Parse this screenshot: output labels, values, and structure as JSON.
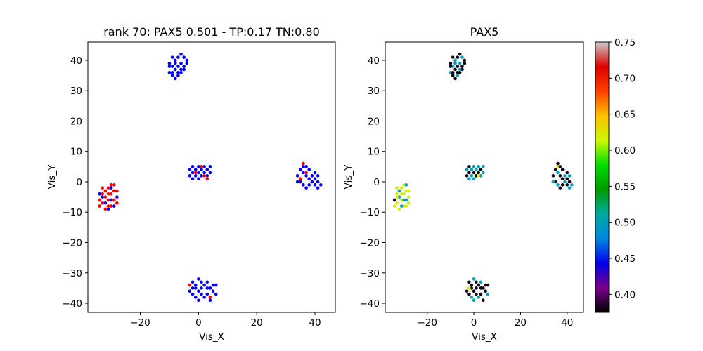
{
  "chart_data": [
    {
      "type": "scatter",
      "title": "rank 70: PAX5 0.501 - TP:0.17 TN:0.80",
      "xlabel": "Vis_X",
      "ylabel": "Vis_Y",
      "xlim": [
        -38,
        47
      ],
      "ylim": [
        -43,
        46
      ],
      "xticks": [
        -20,
        0,
        20,
        40
      ],
      "yticks": [
        -40,
        -30,
        -20,
        -10,
        0,
        10,
        20,
        30,
        40
      ],
      "grid": false,
      "series": [
        {
          "color": "#0000ff",
          "points": [
            [
              -9,
              41
            ],
            [
              -8,
              40
            ],
            [
              -7,
              41
            ],
            [
              -6,
              42
            ],
            [
              -5,
              41
            ],
            [
              -4,
              40
            ],
            [
              -10,
              39
            ],
            [
              -9,
              38
            ],
            [
              -8,
              37
            ],
            [
              -7,
              38
            ],
            [
              -6,
              39
            ],
            [
              -5,
              38
            ],
            [
              -4,
              39
            ],
            [
              -10,
              36
            ],
            [
              -9,
              35
            ],
            [
              -8,
              34
            ],
            [
              -7,
              35
            ],
            [
              -6,
              36
            ],
            [
              -5,
              37
            ],
            [
              -10,
              38
            ],
            [
              -8,
              39
            ],
            [
              -7,
              36
            ],
            [
              -6,
              37
            ],
            [
              -9,
              36
            ],
            [
              -3,
              4
            ],
            [
              -2,
              3
            ],
            [
              -1,
              2
            ],
            [
              0,
              3
            ],
            [
              1,
              4
            ],
            [
              2,
              5
            ],
            [
              3,
              4
            ],
            [
              4,
              3
            ],
            [
              -3,
              2
            ],
            [
              -2,
              1
            ],
            [
              0,
              1
            ],
            [
              1,
              2
            ],
            [
              3,
              2
            ],
            [
              -1,
              4
            ],
            [
              2,
              3
            ],
            [
              0,
              5
            ],
            [
              -2,
              5
            ],
            [
              4,
              5
            ],
            [
              35,
              4
            ],
            [
              36,
              3
            ],
            [
              37,
              2
            ],
            [
              38,
              1
            ],
            [
              39,
              0
            ],
            [
              40,
              -1
            ],
            [
              41,
              0
            ],
            [
              42,
              -1
            ],
            [
              34,
              2
            ],
            [
              35,
              0
            ],
            [
              36,
              -1
            ],
            [
              37,
              -2
            ],
            [
              38,
              -1
            ],
            [
              39,
              2
            ],
            [
              40,
              1
            ],
            [
              41,
              2
            ],
            [
              36,
              5
            ],
            [
              38,
              4
            ],
            [
              40,
              3
            ],
            [
              34,
              0
            ],
            [
              37,
              5
            ],
            [
              41,
              -2
            ],
            [
              -33,
              -5
            ],
            [
              -32,
              -7
            ],
            [
              -30,
              -2
            ],
            [
              -29,
              -8
            ],
            [
              -34,
              -4
            ],
            [
              -31,
              -9
            ],
            [
              -28,
              -5
            ],
            [
              -30,
              -6
            ],
            [
              -2,
              -33
            ],
            [
              -1,
              -34
            ],
            [
              0,
              -32
            ],
            [
              1,
              -33
            ],
            [
              2,
              -34
            ],
            [
              3,
              -33
            ],
            [
              4,
              -35
            ],
            [
              5,
              -36
            ],
            [
              6,
              -37
            ],
            [
              -3,
              -36
            ],
            [
              -2,
              -37
            ],
            [
              -1,
              -38
            ],
            [
              0,
              -36
            ],
            [
              1,
              -37
            ],
            [
              2,
              -38
            ],
            [
              3,
              -37
            ],
            [
              4,
              -39
            ],
            [
              5,
              -34
            ],
            [
              -1,
              -35
            ],
            [
              0,
              -39
            ],
            [
              6,
              -34
            ],
            [
              -2,
              -35
            ],
            [
              1,
              -35
            ],
            [
              3,
              -35
            ]
          ]
        },
        {
          "color": "#ff0000",
          "points": [
            [
              -33,
              -2
            ],
            [
              -32,
              -3
            ],
            [
              -31,
              -2
            ],
            [
              -30,
              -4
            ],
            [
              -29,
              -3
            ],
            [
              -34,
              -6
            ],
            [
              -33,
              -7
            ],
            [
              -32,
              -5
            ],
            [
              -31,
              -6
            ],
            [
              -30,
              -8
            ],
            [
              -29,
              -6
            ],
            [
              -28,
              -7
            ],
            [
              -32,
              -9
            ],
            [
              -31,
              -8
            ],
            [
              -30,
              -1
            ],
            [
              -28,
              -3
            ],
            [
              -34,
              -8
            ],
            [
              -33,
              -4
            ],
            [
              -29,
              -1
            ],
            [
              -31,
              -4
            ],
            [
              3,
              1
            ],
            [
              2,
              2
            ],
            [
              -1,
              3
            ],
            [
              1,
              5
            ],
            [
              36,
              6
            ],
            [
              37,
              3
            ],
            [
              35,
              1
            ],
            [
              -3,
              -34
            ],
            [
              4,
              -38
            ]
          ]
        }
      ]
    },
    {
      "type": "scatter",
      "title": "PAX5",
      "xlabel": "Vis_X",
      "ylabel": "Vis_Y",
      "xlim": [
        -38,
        47
      ],
      "ylim": [
        -43,
        46
      ],
      "xticks": [
        -20,
        0,
        20,
        40
      ],
      "yticks": [
        -40,
        -30,
        -20,
        -10,
        0,
        10,
        20,
        30,
        40
      ],
      "grid": false,
      "colorbar": {
        "range": [
          0.375,
          0.75
        ],
        "ticks": [
          0.4,
          0.45,
          0.5,
          0.55,
          0.6,
          0.65,
          0.7,
          0.75
        ],
        "tick_labels": [
          "0.40",
          "0.45",
          "0.50",
          "0.55",
          "0.60",
          "0.65",
          "0.70",
          "0.75"
        ],
        "colormap": "nipy_spectral",
        "stops": [
          "#000000",
          "#7a0089",
          "#0000ea",
          "#0088dd",
          "#00aaa0",
          "#009b00",
          "#00dd00",
          "#ccf800",
          "#ffc000",
          "#ff4000",
          "#dd0000",
          "#cccccc"
        ]
      },
      "points": [
        [
          -9,
          41,
          0.38
        ],
        [
          -8,
          40,
          0.5
        ],
        [
          -7,
          41,
          0.38
        ],
        [
          -6,
          42,
          0.38
        ],
        [
          -5,
          41,
          0.5
        ],
        [
          -4,
          40,
          0.38
        ],
        [
          -10,
          39,
          0.38
        ],
        [
          -9,
          38,
          0.5
        ],
        [
          -8,
          37,
          0.38
        ],
        [
          -7,
          38,
          0.38
        ],
        [
          -6,
          39,
          0.5
        ],
        [
          -5,
          38,
          0.38
        ],
        [
          -4,
          39,
          0.38
        ],
        [
          -10,
          36,
          0.5
        ],
        [
          -9,
          35,
          0.38
        ],
        [
          -8,
          34,
          0.38
        ],
        [
          -7,
          35,
          0.5
        ],
        [
          -6,
          36,
          0.38
        ],
        [
          -5,
          37,
          0.38
        ],
        [
          -10,
          38,
          0.38
        ],
        [
          -8,
          39,
          0.5
        ],
        [
          -7,
          36,
          0.38
        ],
        [
          -6,
          37,
          0.5
        ],
        [
          -9,
          36,
          0.38
        ],
        [
          -3,
          4,
          0.5
        ],
        [
          -2,
          3,
          0.38
        ],
        [
          -1,
          2,
          0.5
        ],
        [
          0,
          3,
          0.38
        ],
        [
          1,
          4,
          0.5
        ],
        [
          2,
          5,
          0.5
        ],
        [
          3,
          4,
          0.38
        ],
        [
          4,
          3,
          0.5
        ],
        [
          -3,
          2,
          0.38
        ],
        [
          -2,
          1,
          0.5
        ],
        [
          0,
          1,
          0.5
        ],
        [
          1,
          2,
          0.38
        ],
        [
          3,
          2,
          0.5
        ],
        [
          -1,
          4,
          0.5
        ],
        [
          2,
          3,
          0.38
        ],
        [
          0,
          5,
          0.5
        ],
        [
          -2,
          5,
          0.38
        ],
        [
          4,
          5,
          0.5
        ],
        [
          2,
          2,
          0.62
        ],
        [
          35,
          4,
          0.38
        ],
        [
          36,
          3,
          0.5
        ],
        [
          37,
          2,
          0.38
        ],
        [
          38,
          1,
          0.38
        ],
        [
          39,
          0,
          0.5
        ],
        [
          40,
          -1,
          0.38
        ],
        [
          41,
          0,
          0.38
        ],
        [
          42,
          -1,
          0.5
        ],
        [
          34,
          2,
          0.38
        ],
        [
          35,
          0,
          0.38
        ],
        [
          36,
          -1,
          0.5
        ],
        [
          37,
          -2,
          0.38
        ],
        [
          38,
          -1,
          0.38
        ],
        [
          39,
          2,
          0.5
        ],
        [
          40,
          1,
          0.38
        ],
        [
          41,
          2,
          0.5
        ],
        [
          36,
          5,
          0.62
        ],
        [
          38,
          4,
          0.38
        ],
        [
          40,
          3,
          0.38
        ],
        [
          34,
          0,
          0.5
        ],
        [
          37,
          5,
          0.38
        ],
        [
          41,
          -2,
          0.5
        ],
        [
          36,
          6,
          0.38
        ],
        [
          -33,
          -2,
          0.62
        ],
        [
          -32,
          -3,
          0.5
        ],
        [
          -31,
          -2,
          0.62
        ],
        [
          -30,
          -4,
          0.62
        ],
        [
          -29,
          -3,
          0.62
        ],
        [
          -34,
          -6,
          0.38
        ],
        [
          -33,
          -7,
          0.62
        ],
        [
          -32,
          -5,
          0.5
        ],
        [
          -31,
          -6,
          0.62
        ],
        [
          -30,
          -8,
          0.62
        ],
        [
          -29,
          -6,
          0.5
        ],
        [
          -28,
          -7,
          0.62
        ],
        [
          -32,
          -9,
          0.62
        ],
        [
          -31,
          -8,
          0.5
        ],
        [
          -30,
          -1,
          0.62
        ],
        [
          -28,
          -3,
          0.62
        ],
        [
          -34,
          -8,
          0.62
        ],
        [
          -33,
          -4,
          0.62
        ],
        [
          -29,
          -1,
          0.5
        ],
        [
          -31,
          -4,
          0.62
        ],
        [
          -33,
          -5,
          0.62
        ],
        [
          -30,
          -6,
          0.5
        ],
        [
          -29,
          -8,
          0.62
        ],
        [
          -28,
          -5,
          0.62
        ],
        [
          -2,
          -33,
          0.38
        ],
        [
          -1,
          -34,
          0.38
        ],
        [
          0,
          -32,
          0.5
        ],
        [
          1,
          -33,
          0.38
        ],
        [
          2,
          -34,
          0.38
        ],
        [
          3,
          -33,
          0.5
        ],
        [
          4,
          -35,
          0.38
        ],
        [
          5,
          -36,
          0.38
        ],
        [
          6,
          -37,
          0.5
        ],
        [
          -3,
          -36,
          0.38
        ],
        [
          -2,
          -37,
          0.38
        ],
        [
          -1,
          -38,
          0.5
        ],
        [
          0,
          -36,
          0.38
        ],
        [
          1,
          -37,
          0.38
        ],
        [
          2,
          -38,
          0.5
        ],
        [
          3,
          -37,
          0.38
        ],
        [
          4,
          -39,
          0.38
        ],
        [
          5,
          -34,
          0.38
        ],
        [
          -1,
          -35,
          0.38
        ],
        [
          0,
          -39,
          0.5
        ],
        [
          6,
          -34,
          0.38
        ],
        [
          -2,
          -35,
          0.62
        ],
        [
          1,
          -35,
          0.38
        ],
        [
          3,
          -35,
          0.38
        ]
      ]
    }
  ]
}
